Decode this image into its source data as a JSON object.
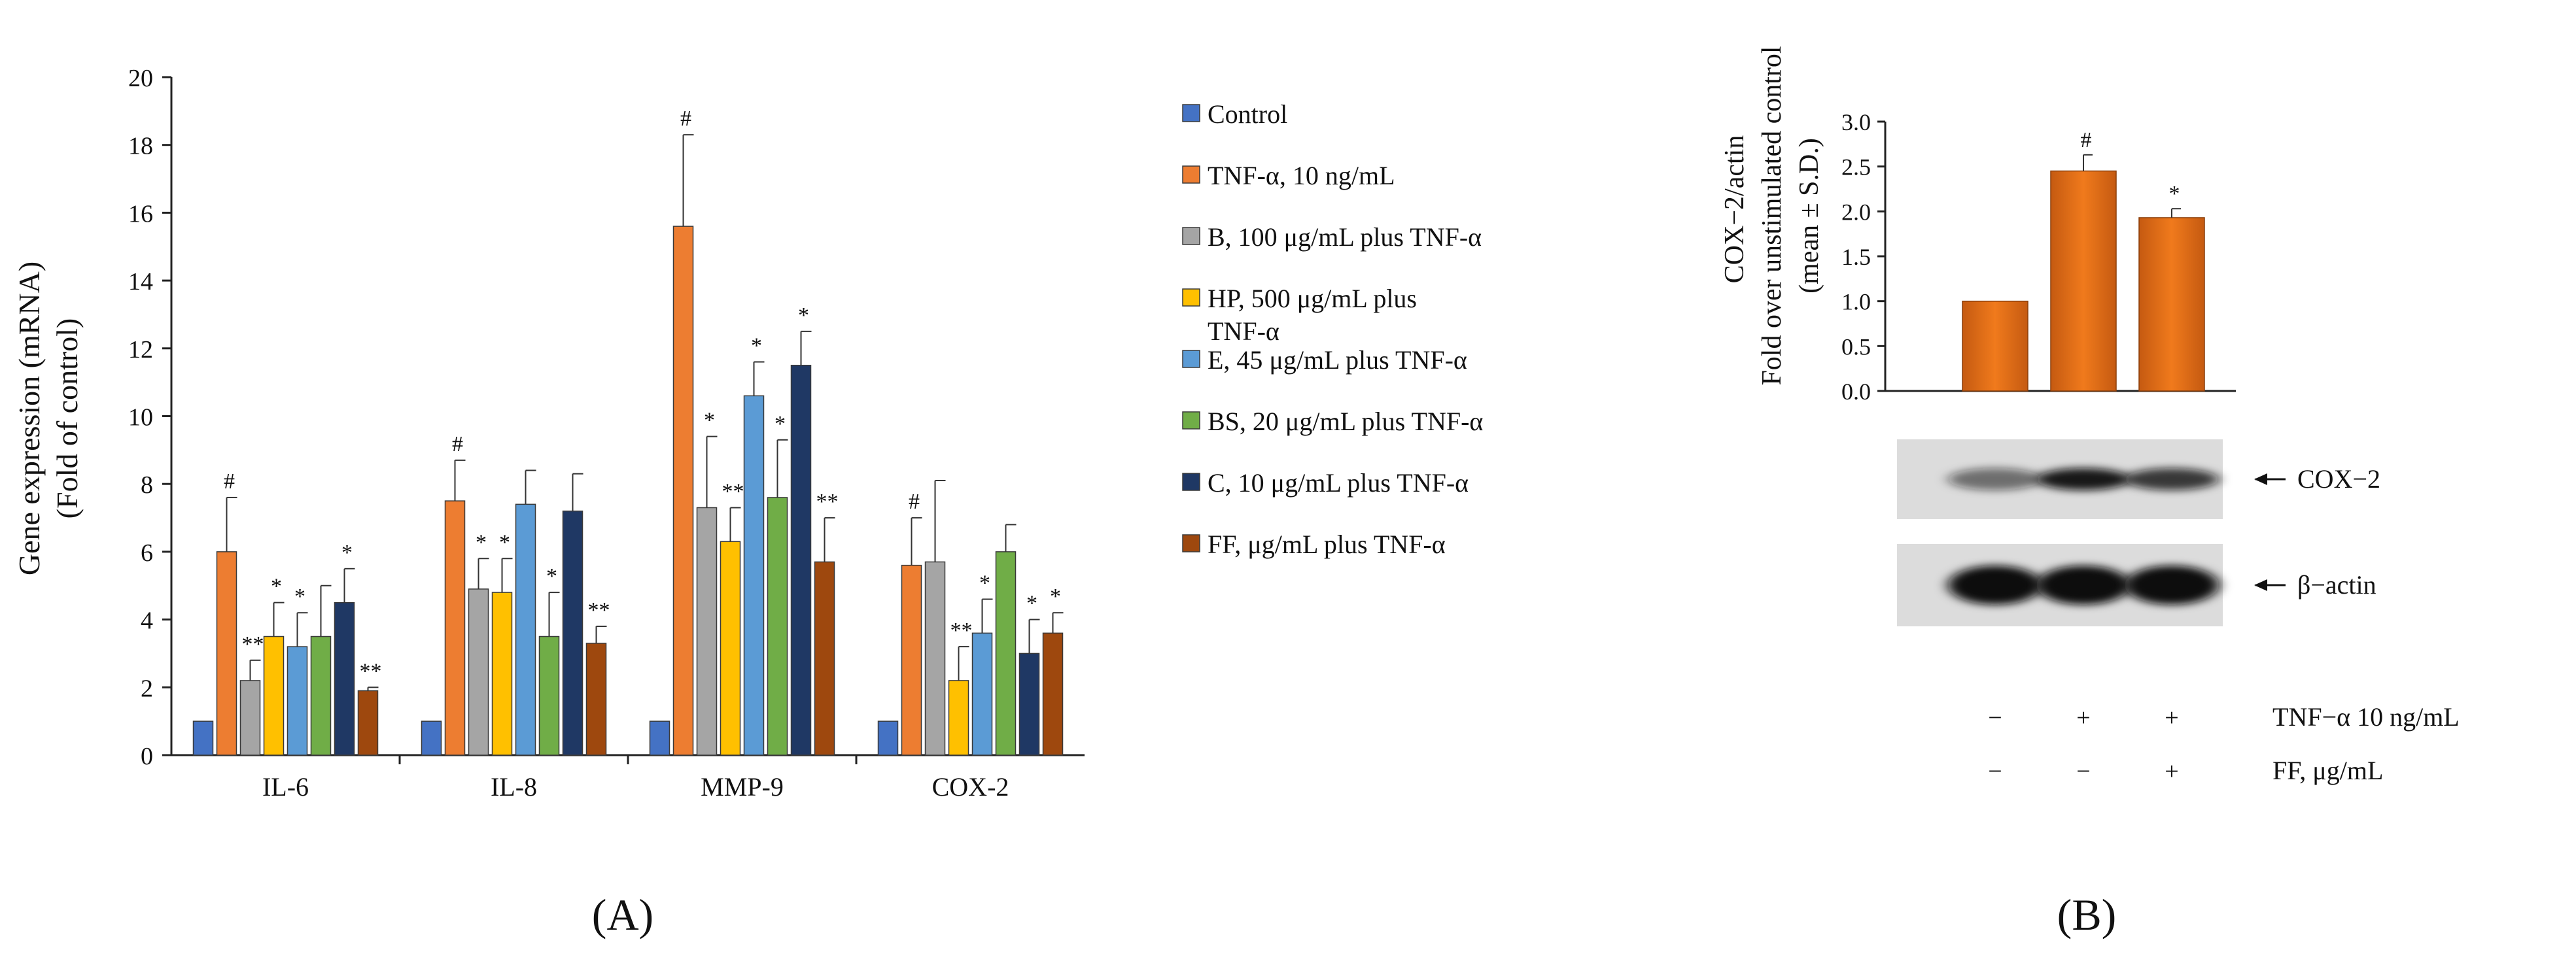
{
  "chart_data": [
    {
      "type": "bar",
      "panel_label": "(A)",
      "ylabel_lines": [
        "Gene expression (mRNA)",
        "(Fold of control)"
      ],
      "ylim": [
        0,
        20
      ],
      "yticks": [
        "0",
        "2",
        "4",
        "6",
        "8",
        "10",
        "12",
        "14",
        "16",
        "18",
        "20"
      ],
      "grid": false,
      "legend_position": "right",
      "categories": [
        "IL-6",
        "IL-8",
        "MMP-9",
        "COX-2"
      ],
      "series": [
        {
          "name": "Control",
          "color": "#4472C4",
          "values": [
            1,
            1,
            1,
            1
          ],
          "errors": [
            0,
            0,
            0,
            0
          ],
          "marks": [
            "",
            "",
            "",
            ""
          ]
        },
        {
          "name": "TNF-α, 10 ng/mL",
          "color": "#ED7D31",
          "values": [
            6.0,
            7.5,
            15.6,
            5.6
          ],
          "errors": [
            1.6,
            1.2,
            2.7,
            1.4
          ],
          "marks": [
            "#",
            "#",
            "#",
            "#"
          ]
        },
        {
          "name": "B, 100 μg/mL  plus TNF-α",
          "color": "#A5A5A5",
          "values": [
            2.2,
            4.9,
            7.3,
            5.7
          ],
          "errors": [
            0.6,
            0.9,
            2.1,
            2.4
          ],
          "marks": [
            "**",
            "*",
            "*",
            ""
          ]
        },
        {
          "name": "HP, 500 μg/mL  plus TNF-α",
          "name_lines": [
            "HP, 500 μg/mL  plus",
            "TNF-α"
          ],
          "color": "#FFC000",
          "values": [
            3.5,
            4.8,
            6.3,
            2.2
          ],
          "errors": [
            1.0,
            1.0,
            1.0,
            1.0
          ],
          "marks": [
            "*",
            "*",
            "**",
            "**"
          ]
        },
        {
          "name": "E, 45 μg/mL  plus TNF-α",
          "color": "#5B9BD5",
          "values": [
            3.2,
            7.4,
            10.6,
            3.6
          ],
          "errors": [
            1.0,
            1.0,
            1.0,
            1.0
          ],
          "marks": [
            "*",
            "",
            "*",
            "*"
          ]
        },
        {
          "name": "BS, 20 μg/mL  plus TNF-α",
          "color": "#70AD47",
          "values": [
            3.5,
            3.5,
            7.6,
            6.0
          ],
          "errors": [
            1.5,
            1.3,
            1.7,
            0.8
          ],
          "marks": [
            "",
            "*",
            "*",
            ""
          ]
        },
        {
          "name": "C, 10 μg/mL  plus TNF-α",
          "color": "#1F3864",
          "values": [
            4.5,
            7.2,
            11.5,
            3.0
          ],
          "errors": [
            1.0,
            1.1,
            1.0,
            1.0
          ],
          "marks": [
            "*",
            "",
            "*",
            "*"
          ]
        },
        {
          "name": "FF, μg/mL  plus TNF-α",
          "color": "#9E480E",
          "values": [
            1.9,
            3.3,
            5.7,
            3.6
          ],
          "errors": [
            0.1,
            0.5,
            1.3,
            0.6
          ],
          "marks": [
            "**",
            "**",
            "**",
            "*"
          ]
        }
      ]
    },
    {
      "type": "bar",
      "panel_label": "(B)",
      "ylabel_lines": [
        "COX−2/actin",
        "Fold over unstimulated control",
        "(mean ± S.D.)"
      ],
      "ylim": [
        0,
        3
      ],
      "yticks": [
        "0.0",
        "0.5",
        "1.0",
        "1.5",
        "2.0",
        "2.5",
        "3.0"
      ],
      "grid": false,
      "values": [
        1.0,
        2.45,
        1.93
      ],
      "errors": [
        0,
        0.18,
        0.1
      ],
      "marks": [
        "",
        "#",
        "*"
      ],
      "bar_color": "#E46C0A",
      "blot_labels": [
        "COX−2",
        "β−actin"
      ],
      "blot_intensity": {
        "COX-2": [
          0.55,
          0.95,
          0.8
        ],
        "beta-actin": [
          1.0,
          1.0,
          1.0
        ]
      },
      "condition_rows": [
        {
          "label": "TNF−α 10 ng/mL",
          "signs": [
            "−",
            "+",
            "+"
          ]
        },
        {
          "label": "FF, μg/mL",
          "signs": [
            "−",
            "−",
            "+"
          ]
        }
      ]
    }
  ]
}
